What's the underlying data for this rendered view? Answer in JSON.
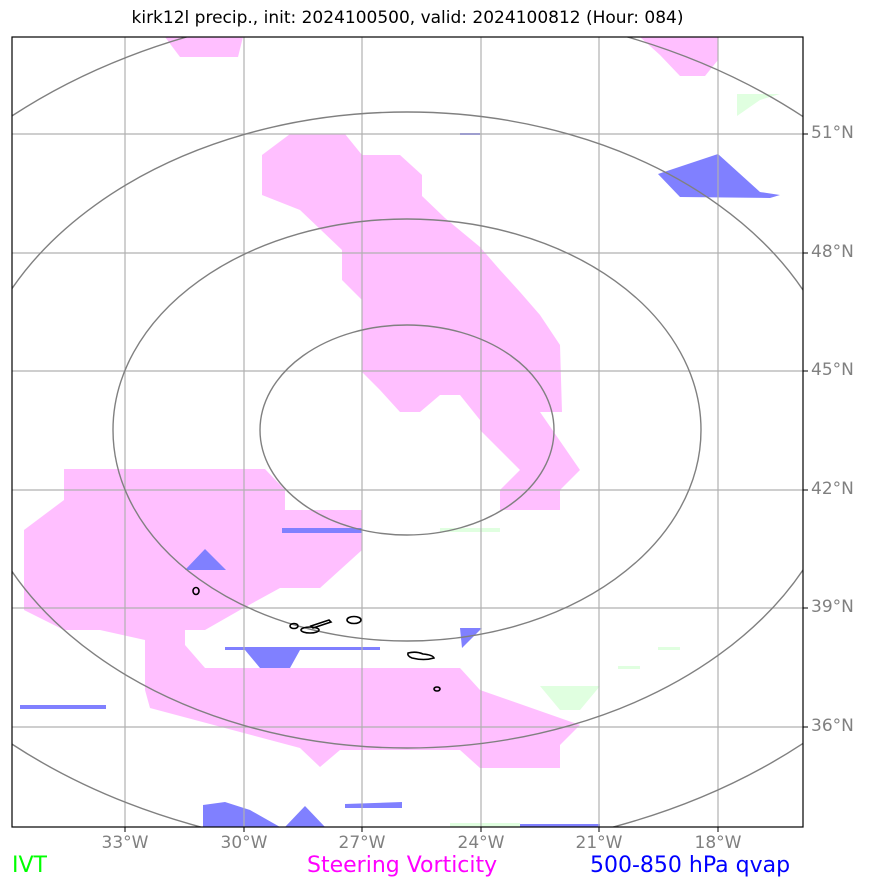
{
  "title": "kirk12l precip., init: 2024100500, valid: 2024100812 (Hour: 084)",
  "map": {
    "lat_labels": [
      "51°N",
      "48°N",
      "45°N",
      "42°N",
      "39°N",
      "36°N"
    ],
    "lon_labels": [
      "33°W",
      "30°W",
      "27°W",
      "24°W",
      "21°W",
      "18°W"
    ]
  },
  "legend": {
    "ivt": {
      "label": "IVT",
      "color": "#00ff00"
    },
    "vorticity": {
      "label": "Steering Vorticity",
      "color": "#ff00ff"
    },
    "qvap": {
      "label": "500-850 hPa qvap",
      "color": "#0000ff"
    }
  },
  "colors": {
    "vorticity_fill": "#ffbfff",
    "qvap_fill": "#8080ff",
    "ivt_fill": "#e0ffe0",
    "range_rings": "#808080",
    "gridlines": "#b0b0b0",
    "coastline": "#000000"
  }
}
